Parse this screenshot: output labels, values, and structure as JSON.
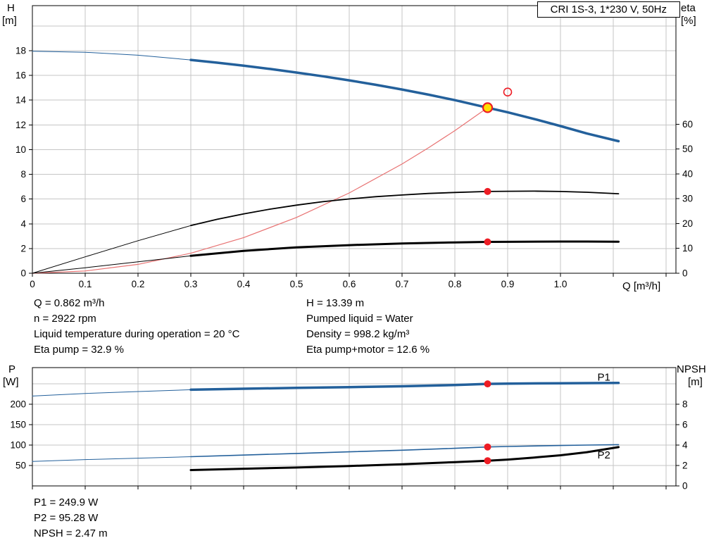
{
  "header": {
    "model_label": "CRI 1S-3, 1*230 V, 50Hz"
  },
  "axes": {
    "top_left_title": "H",
    "top_left_unit": "[m]",
    "top_right_title": "eta",
    "top_right_unit": "[%]",
    "x_title": "Q [m³/h]",
    "bottom_left_title": "P",
    "bottom_left_unit": "[W]",
    "bottom_right_title": "NPSH",
    "bottom_right_unit": "[m]"
  },
  "operating_point": {
    "left_column": [
      "Q = 0.862 m³/h",
      "n = 2922 rpm",
      "Liquid temperature during operation = 20 °C",
      "Eta pump = 32.9 %"
    ],
    "right_column": [
      "H = 13.39 m",
      "Pumped liquid = Water",
      "Density = 998.2 kg/m³",
      "Eta pump+motor = 12.6 %"
    ]
  },
  "results": [
    "P1 = 249.9 W",
    "P2 = 95.28 W",
    "NPSH = 2.47 m"
  ],
  "colors": {
    "blue": "#23609b",
    "black": "#000000",
    "red": "#ed1c24",
    "lightred": "#e87272",
    "yellow": "#ffdf00",
    "grid": "#c6c6c6"
  },
  "chart_data": [
    {
      "name": "hq-eta-chart",
      "type": "line",
      "title": "CRI 1S-3, 1*230 V, 50Hz",
      "xlabel": "Q [m³/h]",
      "ylabel_left": "H [m]",
      "ylabel_right": "eta [%]",
      "xlim": [
        0,
        1.2187
      ],
      "ylim_left": [
        0,
        21.64
      ],
      "ylim_right": [
        0,
        107.7
      ],
      "x_ticks": [
        0,
        0.1,
        0.2,
        0.3,
        0.4,
        0.5,
        0.6,
        0.7,
        0.8,
        0.9,
        1.0,
        1.1,
        1.2
      ],
      "x_tick_labels": [
        "0",
        "0.1",
        "0.2",
        "0.3",
        "0.4",
        "0.5",
        "0.6",
        "0.7",
        "0.8",
        "0.9",
        "1.0"
      ],
      "grid_x": [
        0.1,
        0.2,
        0.3,
        0.4,
        0.5,
        0.6,
        0.7,
        0.8,
        0.9,
        1.0,
        1.1,
        1.2
      ],
      "y_left_ticks": [
        0,
        2,
        4,
        6,
        8,
        10,
        12,
        14,
        16,
        18
      ],
      "y_left_grid": [
        2,
        4,
        6,
        8,
        10,
        12,
        14,
        16,
        18,
        20
      ],
      "y_right_ticks": [
        0,
        10,
        20,
        30,
        40,
        50,
        60
      ],
      "series": [
        {
          "name": "h-curve-lowflow",
          "axis": "left",
          "color": "blue",
          "width": 1,
          "points": [
            [
              0,
              17.95
            ],
            [
              0.1,
              17.87
            ],
            [
              0.2,
              17.63
            ],
            [
              0.3,
              17.25
            ]
          ]
        },
        {
          "name": "h-curve",
          "axis": "left",
          "color": "blue",
          "width": 3.5,
          "points": [
            [
              0.3,
              17.25
            ],
            [
              0.35,
              17.03
            ],
            [
              0.4,
              16.78
            ],
            [
              0.45,
              16.52
            ],
            [
              0.5,
              16.23
            ],
            [
              0.55,
              15.93
            ],
            [
              0.6,
              15.6
            ],
            [
              0.65,
              15.24
            ],
            [
              0.7,
              14.86
            ],
            [
              0.75,
              14.44
            ],
            [
              0.8,
              14.0
            ],
            [
              0.862,
              13.39
            ],
            [
              0.9,
              13.02
            ],
            [
              0.95,
              12.48
            ],
            [
              1.0,
              11.9
            ],
            [
              1.05,
              11.3
            ],
            [
              1.11,
              10.68
            ]
          ]
        },
        {
          "name": "system-curve",
          "axis": "left",
          "color": "lightred",
          "width": 1.2,
          "points": [
            [
              0,
              0
            ],
            [
              0.1,
              0.18
            ],
            [
              0.2,
              0.72
            ],
            [
              0.3,
              1.62
            ],
            [
              0.4,
              2.88
            ],
            [
              0.5,
              4.51
            ],
            [
              0.6,
              6.49
            ],
            [
              0.7,
              8.83
            ],
            [
              0.75,
              10.14
            ],
            [
              0.8,
              11.53
            ],
            [
              0.862,
              13.39
            ]
          ]
        },
        {
          "name": "eta-pump-curve-lowflow",
          "axis": "right",
          "color": "black",
          "width": 1,
          "points": [
            [
              0,
              0
            ],
            [
              0.1,
              6.6
            ],
            [
              0.2,
              13.1
            ],
            [
              0.3,
              19.2
            ]
          ]
        },
        {
          "name": "eta-pump-curve",
          "axis": "right",
          "color": "black",
          "width": 1.8,
          "points": [
            [
              0.3,
              19.2
            ],
            [
              0.35,
              21.7
            ],
            [
              0.4,
              23.9
            ],
            [
              0.45,
              25.8
            ],
            [
              0.5,
              27.4
            ],
            [
              0.55,
              28.8
            ],
            [
              0.6,
              29.9
            ],
            [
              0.65,
              30.8
            ],
            [
              0.7,
              31.5
            ],
            [
              0.75,
              32.1
            ],
            [
              0.8,
              32.5
            ],
            [
              0.862,
              32.9
            ],
            [
              0.9,
              33.0
            ],
            [
              0.95,
              33.05
            ],
            [
              1.0,
              32.9
            ],
            [
              1.05,
              32.6
            ],
            [
              1.11,
              32.0
            ]
          ]
        },
        {
          "name": "eta-pump-motor-curve-lowflow",
          "axis": "right",
          "color": "black",
          "width": 1,
          "points": [
            [
              0,
              0
            ],
            [
              0.1,
              2.2
            ],
            [
              0.2,
              4.6
            ],
            [
              0.3,
              7.0
            ]
          ]
        },
        {
          "name": "eta-pump-motor-curve",
          "axis": "right",
          "color": "black",
          "width": 3,
          "points": [
            [
              0.3,
              7.0
            ],
            [
              0.4,
              9.0
            ],
            [
              0.5,
              10.4
            ],
            [
              0.6,
              11.3
            ],
            [
              0.7,
              12.0
            ],
            [
              0.8,
              12.4
            ],
            [
              0.862,
              12.6
            ],
            [
              0.9,
              12.65
            ],
            [
              1.0,
              12.75
            ],
            [
              1.05,
              12.75
            ],
            [
              1.11,
              12.7
            ]
          ]
        }
      ],
      "markers": [
        {
          "name": "eta-pump-duty-dot",
          "type": "dot",
          "axis": "right",
          "x": 0.862,
          "y": 32.9
        },
        {
          "name": "eta-pump-motor-duty-dot",
          "type": "dot",
          "axis": "right",
          "x": 0.862,
          "y": 12.6
        },
        {
          "name": "duty-point-marker",
          "type": "duty",
          "axis": "left",
          "x": 0.862,
          "y": 13.39
        },
        {
          "name": "requested-duty-marker",
          "type": "open",
          "axis": "left",
          "x": 0.9,
          "y": 14.65
        }
      ]
    },
    {
      "name": "power-npsh-chart",
      "type": "line",
      "xlabel": "Q [m³/h]",
      "ylabel_left": "P [W]",
      "ylabel_right": "NPSH [m]",
      "xlim": [
        0,
        1.2187
      ],
      "ylim_left": [
        0,
        289.7
      ],
      "ylim_right": [
        0,
        11.586
      ],
      "x_ticks": [
        0,
        0.1,
        0.2,
        0.3,
        0.4,
        0.5,
        0.6,
        0.7,
        0.8,
        0.9,
        1.0,
        1.1,
        1.2
      ],
      "x_tick_labels": [],
      "grid_x": [
        0.1,
        0.2,
        0.3,
        0.4,
        0.5,
        0.6,
        0.7,
        0.8,
        0.9,
        1.0,
        1.1,
        1.2
      ],
      "y_left_ticks": [
        50,
        100,
        150,
        200
      ],
      "y_left_grid": [
        50,
        100,
        150,
        200,
        250
      ],
      "y_right_ticks": [
        0,
        2,
        4,
        6,
        8
      ],
      "series": [
        {
          "name": "p1-curve-lowflow",
          "axis": "left",
          "color": "blue",
          "width": 1,
          "points": [
            [
              0,
              220
            ],
            [
              0.1,
              226.5
            ],
            [
              0.2,
              231
            ],
            [
              0.3,
              235.5
            ]
          ]
        },
        {
          "name": "p1-curve",
          "axis": "left",
          "color": "blue",
          "width": 3.5,
          "points": [
            [
              0.3,
              235.5
            ],
            [
              0.4,
              238
            ],
            [
              0.5,
              240
            ],
            [
              0.6,
              242
            ],
            [
              0.7,
              244
            ],
            [
              0.8,
              247
            ],
            [
              0.862,
              249.9
            ],
            [
              0.9,
              250.5
            ],
            [
              1.0,
              251.5
            ],
            [
              1.11,
              252.3
            ]
          ]
        },
        {
          "name": "p2-curve-lowflow",
          "axis": "left",
          "color": "blue",
          "width": 1,
          "points": [
            [
              0,
              60
            ],
            [
              0.1,
              64.5
            ],
            [
              0.2,
              68
            ],
            [
              0.3,
              71.5
            ]
          ]
        },
        {
          "name": "p2-curve",
          "axis": "left",
          "color": "blue",
          "width": 1.6,
          "points": [
            [
              0.3,
              71.5
            ],
            [
              0.4,
              75.5
            ],
            [
              0.5,
              79.5
            ],
            [
              0.6,
              83.5
            ],
            [
              0.7,
              87.5
            ],
            [
              0.8,
              92
            ],
            [
              0.862,
              95.28
            ],
            [
              0.9,
              96.5
            ],
            [
              1.0,
              99
            ],
            [
              1.05,
              100
            ],
            [
              1.11,
              101
            ]
          ]
        },
        {
          "name": "npsh-curve",
          "axis": "right",
          "color": "black",
          "width": 3,
          "points": [
            [
              0.3,
              1.55
            ],
            [
              0.4,
              1.68
            ],
            [
              0.5,
              1.8
            ],
            [
              0.6,
              1.95
            ],
            [
              0.7,
              2.12
            ],
            [
              0.8,
              2.33
            ],
            [
              0.862,
              2.47
            ],
            [
              0.9,
              2.58
            ],
            [
              0.95,
              2.78
            ],
            [
              1.0,
              3.0
            ],
            [
              1.05,
              3.3
            ],
            [
              1.11,
              3.8
            ]
          ]
        }
      ],
      "markers": [
        {
          "name": "p1-duty-dot",
          "type": "dot",
          "axis": "left",
          "x": 0.862,
          "y": 249.9
        },
        {
          "name": "p2-duty-dot",
          "type": "dot",
          "axis": "left",
          "x": 0.862,
          "y": 95.28
        },
        {
          "name": "npsh-duty-dot",
          "type": "dot",
          "axis": "right",
          "x": 0.862,
          "y": 2.47
        }
      ],
      "labels": [
        {
          "name": "p1-curve-label",
          "text": "P1",
          "axis": "left",
          "x": 1.07,
          "y": 258,
          "color": "blue"
        },
        {
          "name": "p2-curve-label",
          "text": "P2",
          "axis": "left",
          "x": 1.07,
          "y": 67,
          "color": "blue"
        }
      ]
    }
  ]
}
